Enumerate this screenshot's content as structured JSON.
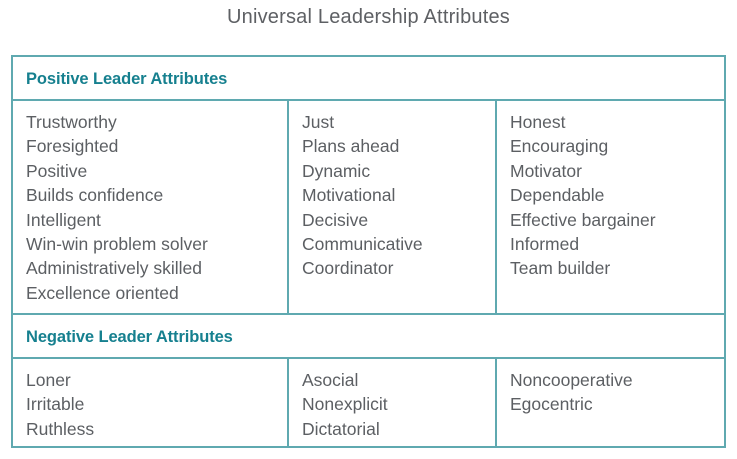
{
  "title": "Universal Leadership Attributes",
  "positive": {
    "header": "Positive Leader Attributes",
    "columns": [
      [
        "Trustworthy",
        "Foresighted",
        "Positive",
        "Builds confidence",
        "Intelligent",
        "Win-win problem solver",
        "Administratively skilled",
        "Excellence oriented"
      ],
      [
        "Just",
        "Plans ahead",
        "Dynamic",
        "Motivational",
        "Decisive",
        "Communicative",
        "Coordinator"
      ],
      [
        "Honest",
        "Encouraging",
        "Motivator",
        "Dependable",
        "Effective bargainer",
        "Informed",
        "Team builder"
      ]
    ]
  },
  "negative": {
    "header": "Negative Leader Attributes",
    "columns": [
      [
        "Loner",
        "Irritable",
        "Ruthless"
      ],
      [
        "Asocial",
        "Nonexplicit",
        "Dictatorial"
      ],
      [
        "Noncooperative",
        "Egocentric"
      ]
    ]
  },
  "colors": {
    "accent": "#16808f",
    "border": "#5fa9b0",
    "text": "#5c5f63"
  }
}
